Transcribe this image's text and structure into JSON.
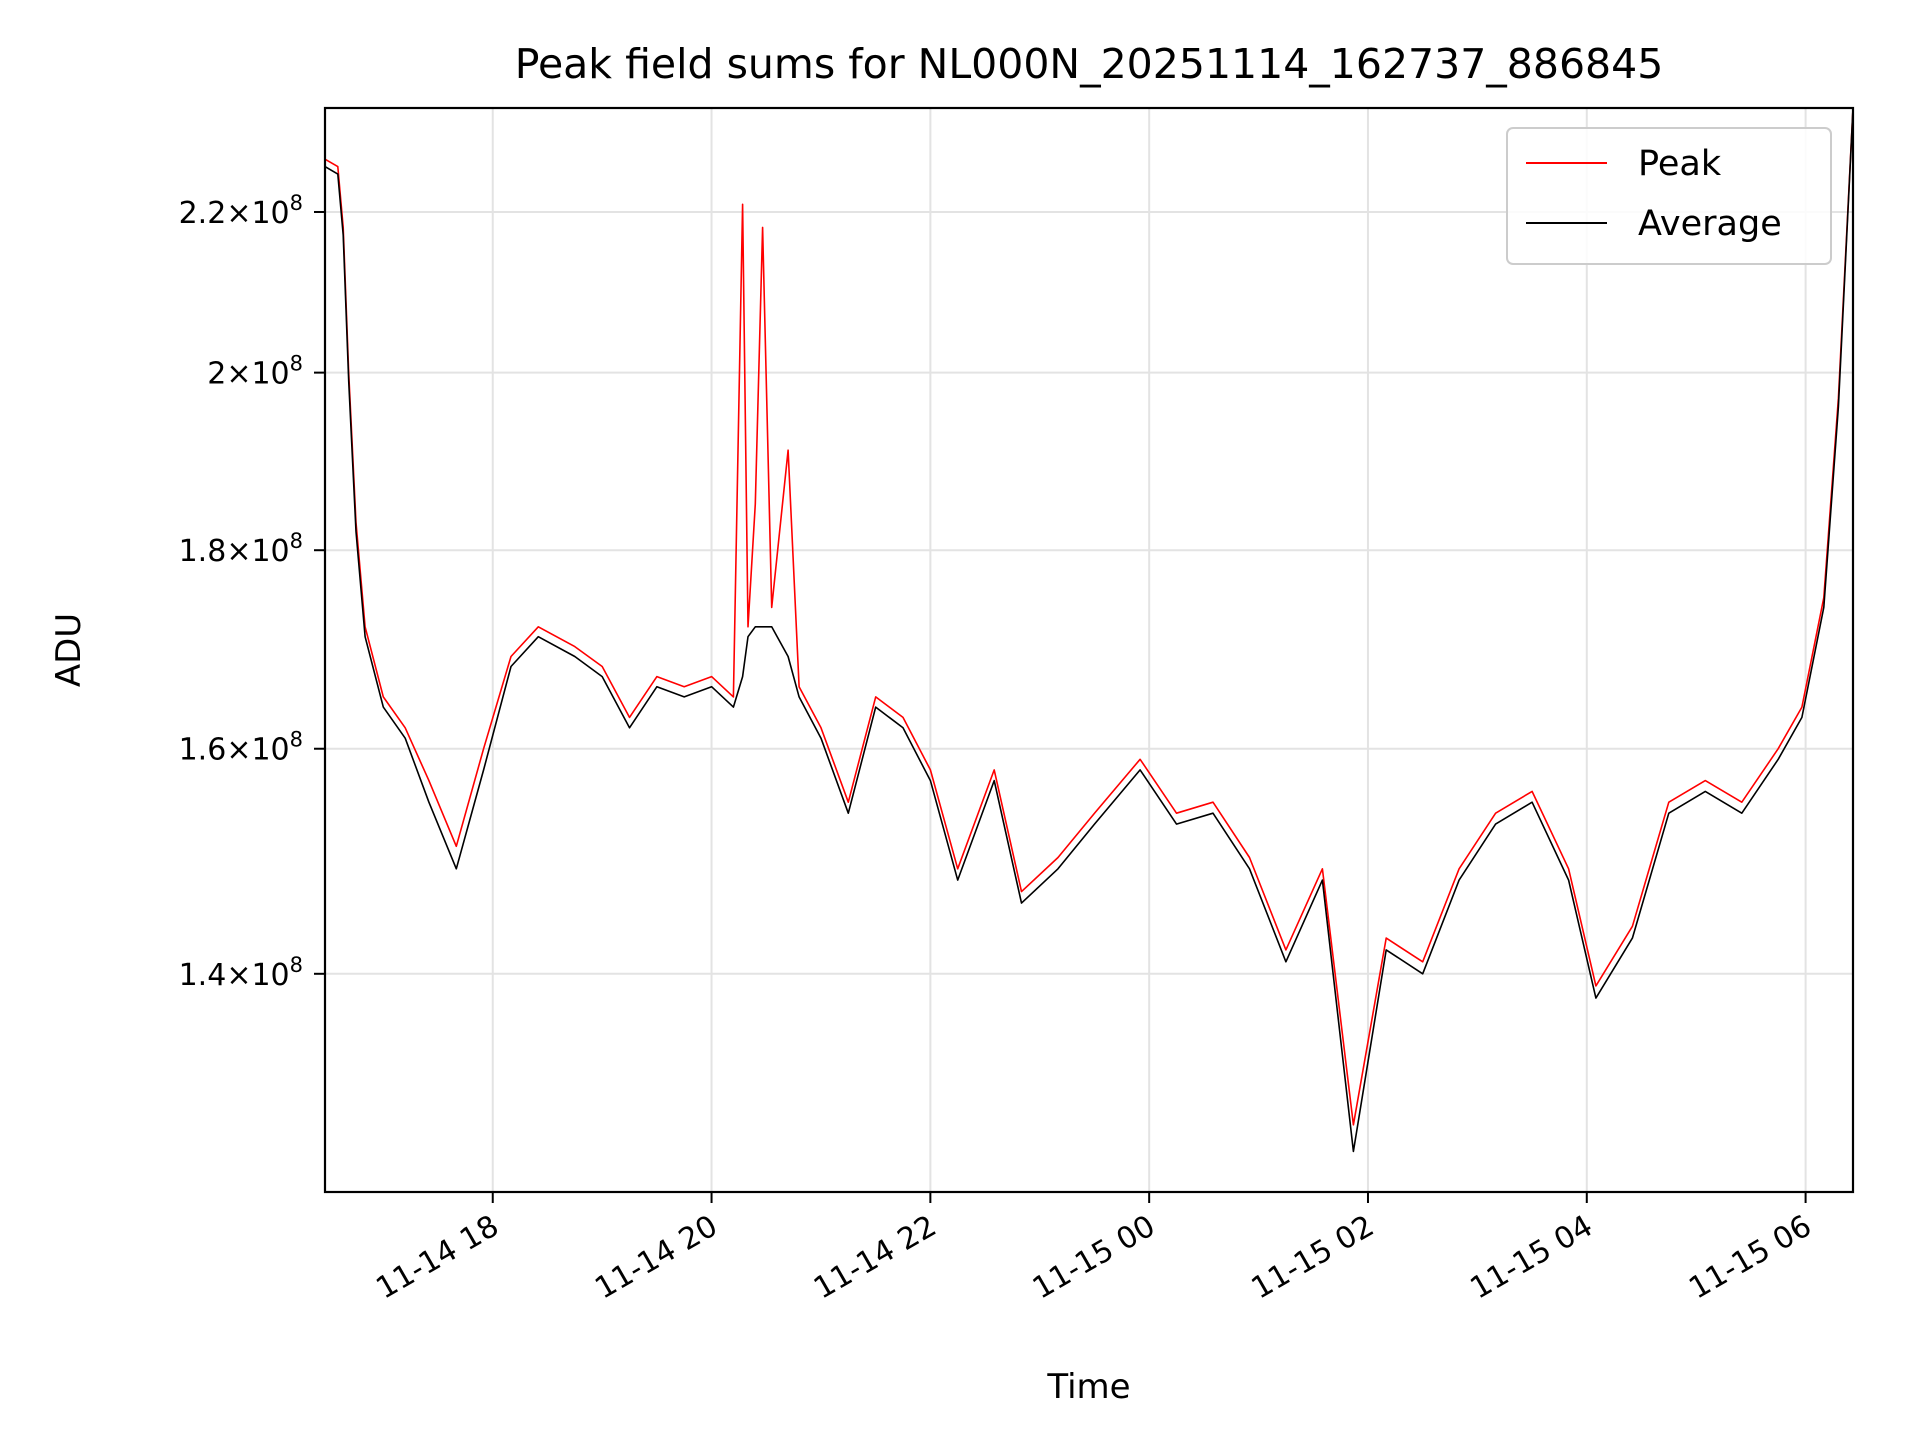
{
  "chart_data": {
    "type": "line",
    "title": "Peak field sums for NL000N_20251114_162737_886845",
    "xlabel": "Time",
    "ylabel": "ADU",
    "y_scale": "log",
    "ylim": [
      123000000,
      234000000
    ],
    "xlim": [
      "2025-11-14 16:28",
      "2025-11-15 06:26"
    ],
    "grid": true,
    "legend_position": "top-right",
    "x_ticks": [
      {
        "value": "2025-11-14 18:00",
        "label": "11-14 18"
      },
      {
        "value": "2025-11-14 20:00",
        "label": "11-14 20"
      },
      {
        "value": "2025-11-14 22:00",
        "label": "11-14 22"
      },
      {
        "value": "2025-11-15 00:00",
        "label": "11-15 00"
      },
      {
        "value": "2025-11-15 02:00",
        "label": "11-15 02"
      },
      {
        "value": "2025-11-15 04:00",
        "label": "11-15 04"
      },
      {
        "value": "2025-11-15 06:00",
        "label": "11-15 06"
      }
    ],
    "y_ticks": [
      {
        "value": 140000000,
        "mantissa": "1.4",
        "exponent": "8"
      },
      {
        "value": 160000000,
        "mantissa": "1.6",
        "exponent": "8"
      },
      {
        "value": 180000000,
        "mantissa": "1.8",
        "exponent": "8"
      },
      {
        "value": 200000000,
        "mantissa": "2",
        "exponent": "8"
      },
      {
        "value": 220000000,
        "mantissa": "2.2",
        "exponent": "8"
      }
    ],
    "series": [
      {
        "name": "Peak",
        "color": "#ff0000",
        "points": [
          [
            "2025-11-14 16:28",
            227000000
          ],
          [
            "2025-11-14 16:35",
            226000000
          ],
          [
            "2025-11-14 16:38",
            218000000
          ],
          [
            "2025-11-14 16:41",
            200000000
          ],
          [
            "2025-11-14 16:45",
            183000000
          ],
          [
            "2025-11-14 16:50",
            172000000
          ],
          [
            "2025-11-14 17:00",
            165000000
          ],
          [
            "2025-11-14 17:12",
            162000000
          ],
          [
            "2025-11-14 17:25",
            157000000
          ],
          [
            "2025-11-14 17:40",
            151000000
          ],
          [
            "2025-11-14 17:55",
            160000000
          ],
          [
            "2025-11-14 18:10",
            169000000
          ],
          [
            "2025-11-14 18:25",
            172000000
          ],
          [
            "2025-11-14 18:45",
            170000000
          ],
          [
            "2025-11-14 19:00",
            168000000
          ],
          [
            "2025-11-14 19:15",
            163000000
          ],
          [
            "2025-11-14 19:30",
            167000000
          ],
          [
            "2025-11-14 19:45",
            166000000
          ],
          [
            "2025-11-14 20:00",
            167000000
          ],
          [
            "2025-11-14 20:12",
            165000000
          ],
          [
            "2025-11-14 20:17",
            221000000
          ],
          [
            "2025-11-14 20:20",
            172000000
          ],
          [
            "2025-11-14 20:24",
            185000000
          ],
          [
            "2025-11-14 20:28",
            218000000
          ],
          [
            "2025-11-14 20:33",
            174000000
          ],
          [
            "2025-11-14 20:42",
            191000000
          ],
          [
            "2025-11-14 20:48",
            166000000
          ],
          [
            "2025-11-14 21:00",
            162000000
          ],
          [
            "2025-11-14 21:15",
            155000000
          ],
          [
            "2025-11-14 21:30",
            165000000
          ],
          [
            "2025-11-14 21:45",
            163000000
          ],
          [
            "2025-11-14 22:00",
            158000000
          ],
          [
            "2025-11-14 22:15",
            149000000
          ],
          [
            "2025-11-14 22:35",
            158000000
          ],
          [
            "2025-11-14 22:50",
            147000000
          ],
          [
            "2025-11-14 23:10",
            150000000
          ],
          [
            "2025-11-14 23:30",
            154000000
          ],
          [
            "2025-11-14 23:55",
            159000000
          ],
          [
            "2025-11-15 00:15",
            154000000
          ],
          [
            "2025-11-15 00:35",
            155000000
          ],
          [
            "2025-11-15 00:55",
            150000000
          ],
          [
            "2025-11-15 01:15",
            142000000
          ],
          [
            "2025-11-15 01:35",
            149000000
          ],
          [
            "2025-11-15 01:52",
            128000000
          ],
          [
            "2025-11-15 02:10",
            143000000
          ],
          [
            "2025-11-15 02:30",
            141000000
          ],
          [
            "2025-11-15 02:50",
            149000000
          ],
          [
            "2025-11-15 03:10",
            154000000
          ],
          [
            "2025-11-15 03:30",
            156000000
          ],
          [
            "2025-11-15 03:50",
            149000000
          ],
          [
            "2025-11-15 04:05",
            139000000
          ],
          [
            "2025-11-15 04:25",
            144000000
          ],
          [
            "2025-11-15 04:45",
            155000000
          ],
          [
            "2025-11-15 05:05",
            157000000
          ],
          [
            "2025-11-15 05:25",
            155000000
          ],
          [
            "2025-11-15 05:45",
            160000000
          ],
          [
            "2025-11-15 05:58",
            164000000
          ],
          [
            "2025-11-15 06:10",
            175000000
          ],
          [
            "2025-11-15 06:18",
            197000000
          ],
          [
            "2025-11-15 06:26",
            234000000
          ]
        ]
      },
      {
        "name": "Average",
        "color": "#000000",
        "points": [
          [
            "2025-11-14 16:28",
            226000000
          ],
          [
            "2025-11-14 16:35",
            225000000
          ],
          [
            "2025-11-14 16:38",
            217000000
          ],
          [
            "2025-11-14 16:41",
            199000000
          ],
          [
            "2025-11-14 16:45",
            182000000
          ],
          [
            "2025-11-14 16:50",
            171000000
          ],
          [
            "2025-11-14 17:00",
            164000000
          ],
          [
            "2025-11-14 17:12",
            161000000
          ],
          [
            "2025-11-14 17:25",
            155000000
          ],
          [
            "2025-11-14 17:40",
            149000000
          ],
          [
            "2025-11-14 17:55",
            158000000
          ],
          [
            "2025-11-14 18:10",
            168000000
          ],
          [
            "2025-11-14 18:25",
            171000000
          ],
          [
            "2025-11-14 18:45",
            169000000
          ],
          [
            "2025-11-14 19:00",
            167000000
          ],
          [
            "2025-11-14 19:15",
            162000000
          ],
          [
            "2025-11-14 19:30",
            166000000
          ],
          [
            "2025-11-14 19:45",
            165000000
          ],
          [
            "2025-11-14 20:00",
            166000000
          ],
          [
            "2025-11-14 20:12",
            164000000
          ],
          [
            "2025-11-14 20:17",
            167000000
          ],
          [
            "2025-11-14 20:20",
            171000000
          ],
          [
            "2025-11-14 20:24",
            172000000
          ],
          [
            "2025-11-14 20:28",
            172000000
          ],
          [
            "2025-11-14 20:33",
            172000000
          ],
          [
            "2025-11-14 20:42",
            169000000
          ],
          [
            "2025-11-14 20:48",
            165000000
          ],
          [
            "2025-11-14 21:00",
            161000000
          ],
          [
            "2025-11-14 21:15",
            154000000
          ],
          [
            "2025-11-14 21:30",
            164000000
          ],
          [
            "2025-11-14 21:45",
            162000000
          ],
          [
            "2025-11-14 22:00",
            157000000
          ],
          [
            "2025-11-14 22:15",
            148000000
          ],
          [
            "2025-11-14 22:35",
            157000000
          ],
          [
            "2025-11-14 22:50",
            146000000
          ],
          [
            "2025-11-14 23:10",
            149000000
          ],
          [
            "2025-11-14 23:30",
            153000000
          ],
          [
            "2025-11-14 23:55",
            158000000
          ],
          [
            "2025-11-15 00:15",
            153000000
          ],
          [
            "2025-11-15 00:35",
            154000000
          ],
          [
            "2025-11-15 00:55",
            149000000
          ],
          [
            "2025-11-15 01:15",
            141000000
          ],
          [
            "2025-11-15 01:35",
            148000000
          ],
          [
            "2025-11-15 01:52",
            126000000
          ],
          [
            "2025-11-15 02:10",
            142000000
          ],
          [
            "2025-11-15 02:30",
            140000000
          ],
          [
            "2025-11-15 02:50",
            148000000
          ],
          [
            "2025-11-15 03:10",
            153000000
          ],
          [
            "2025-11-15 03:30",
            155000000
          ],
          [
            "2025-11-15 03:50",
            148000000
          ],
          [
            "2025-11-15 04:05",
            138000000
          ],
          [
            "2025-11-15 04:25",
            143000000
          ],
          [
            "2025-11-15 04:45",
            154000000
          ],
          [
            "2025-11-15 05:05",
            156000000
          ],
          [
            "2025-11-15 05:25",
            154000000
          ],
          [
            "2025-11-15 05:45",
            159000000
          ],
          [
            "2025-11-15 05:58",
            163000000
          ],
          [
            "2025-11-15 06:10",
            174000000
          ],
          [
            "2025-11-15 06:18",
            196000000
          ],
          [
            "2025-11-15 06:26",
            234000000
          ]
        ]
      }
    ]
  }
}
